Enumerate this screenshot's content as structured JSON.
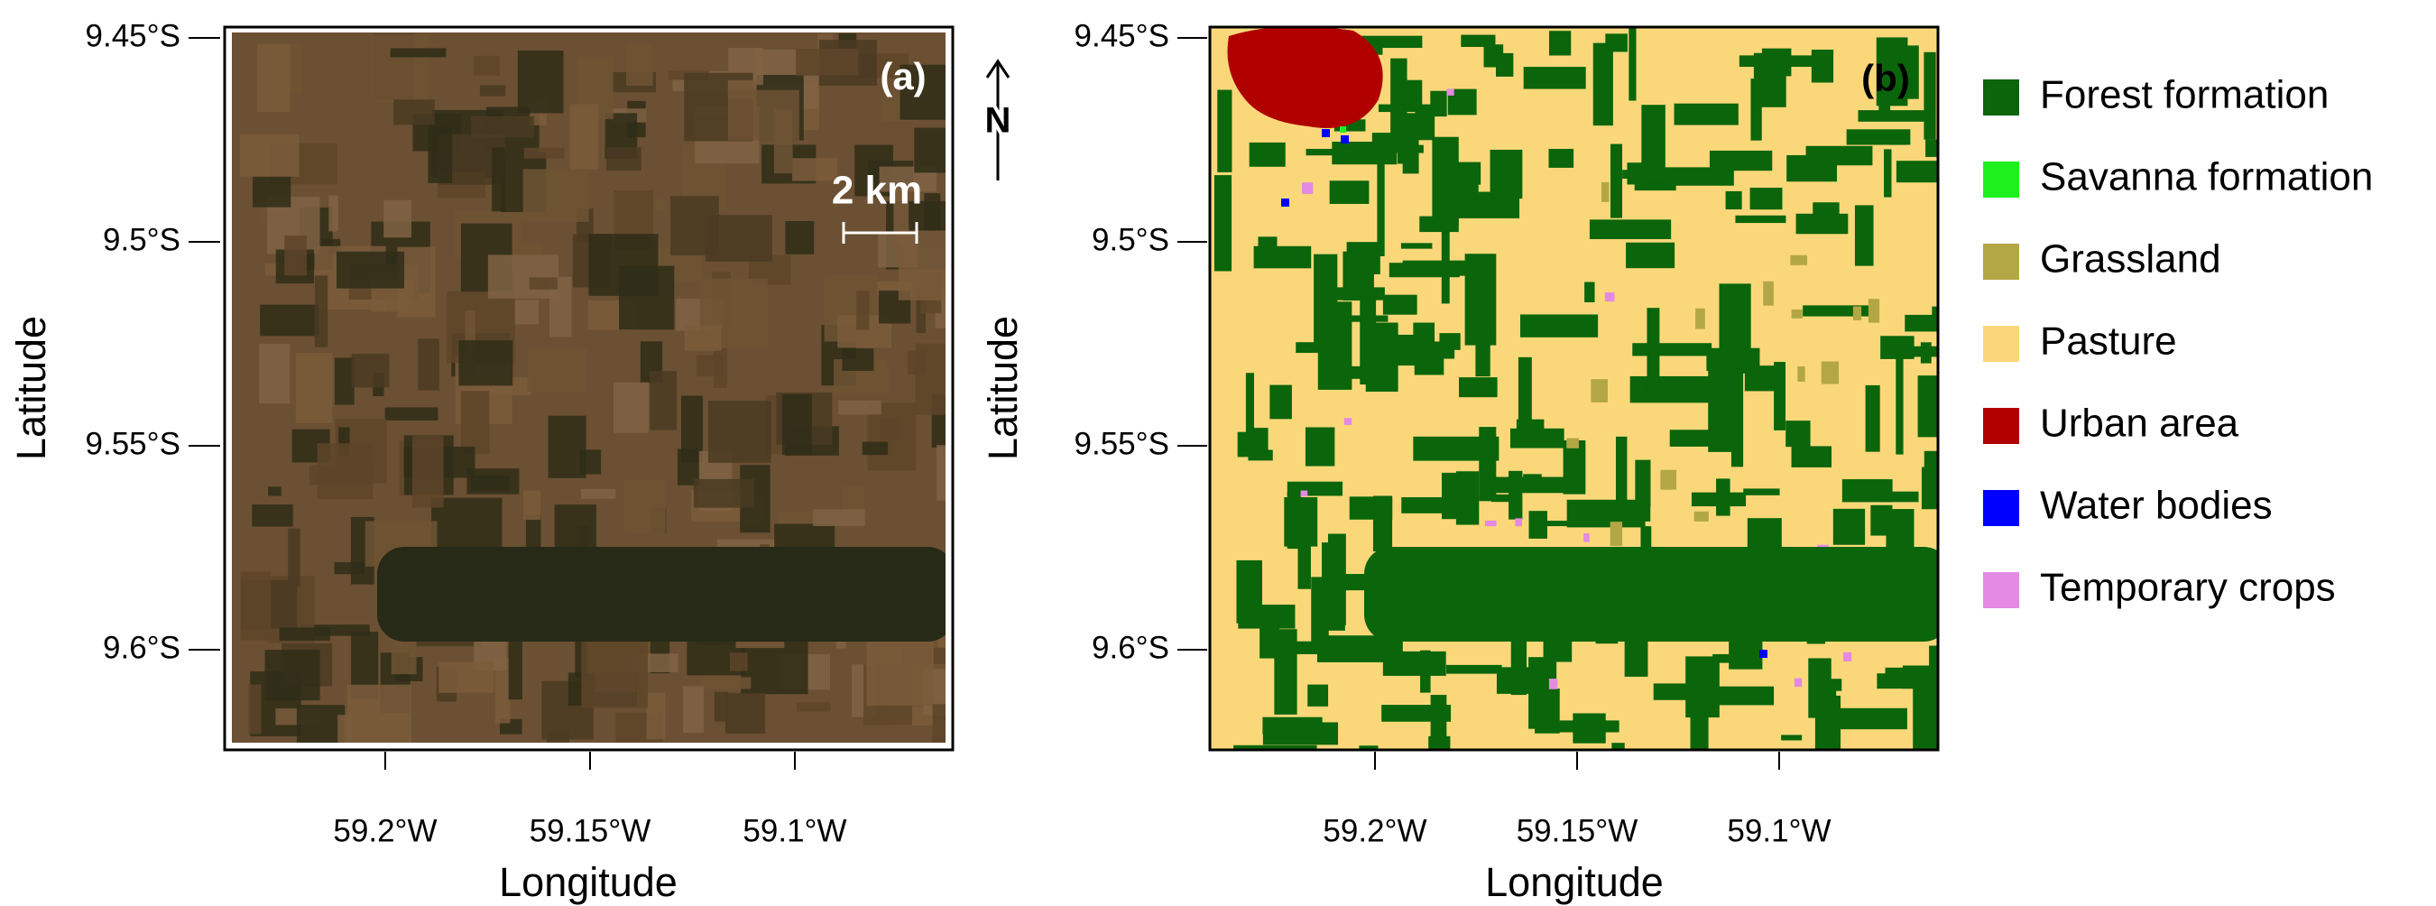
{
  "panels": [
    {
      "label": "(a)",
      "xlabel": "Longitude",
      "ylabel": "Latitude",
      "xticks": [
        {
          "value": -59.2,
          "label": "59.2°W"
        },
        {
          "value": -59.15,
          "label": "59.15°W"
        },
        {
          "value": -59.1,
          "label": "59.1°W"
        }
      ],
      "yticks": [
        {
          "value": 9.45,
          "label": "9.45°S"
        },
        {
          "value": 9.5,
          "label": "9.5°S"
        },
        {
          "value": 9.55,
          "label": "9.55°S"
        },
        {
          "value": 9.6,
          "label": "9.6°S"
        }
      ],
      "scale_bar": "2 km",
      "north": "N"
    },
    {
      "label": "(b)",
      "xlabel": "Longitude",
      "ylabel": "Latitude",
      "xticks": [
        {
          "value": -59.2,
          "label": "59.2°W"
        },
        {
          "value": -59.15,
          "label": "59.15°W"
        },
        {
          "value": -59.1,
          "label": "59.1°W"
        }
      ],
      "yticks": [
        {
          "value": 9.45,
          "label": "9.45°S"
        },
        {
          "value": 9.5,
          "label": "9.5°S"
        },
        {
          "value": 9.55,
          "label": "9.55°S"
        },
        {
          "value": 9.6,
          "label": "9.6°S"
        }
      ]
    }
  ],
  "legend": [
    {
      "name": "Forest formation",
      "color": "#0b650b"
    },
    {
      "name": "Savanna formation",
      "color": "#1ef01e"
    },
    {
      "name": "Grassland",
      "color": "#b3a745"
    },
    {
      "name": "Pasture",
      "color": "#fad87a"
    },
    {
      "name": "Urban area",
      "color": "#b00000"
    },
    {
      "name": "Water bodies",
      "color": "#0000ff"
    },
    {
      "name": "Temporary crops",
      "color": "#e48ae4"
    }
  ]
}
